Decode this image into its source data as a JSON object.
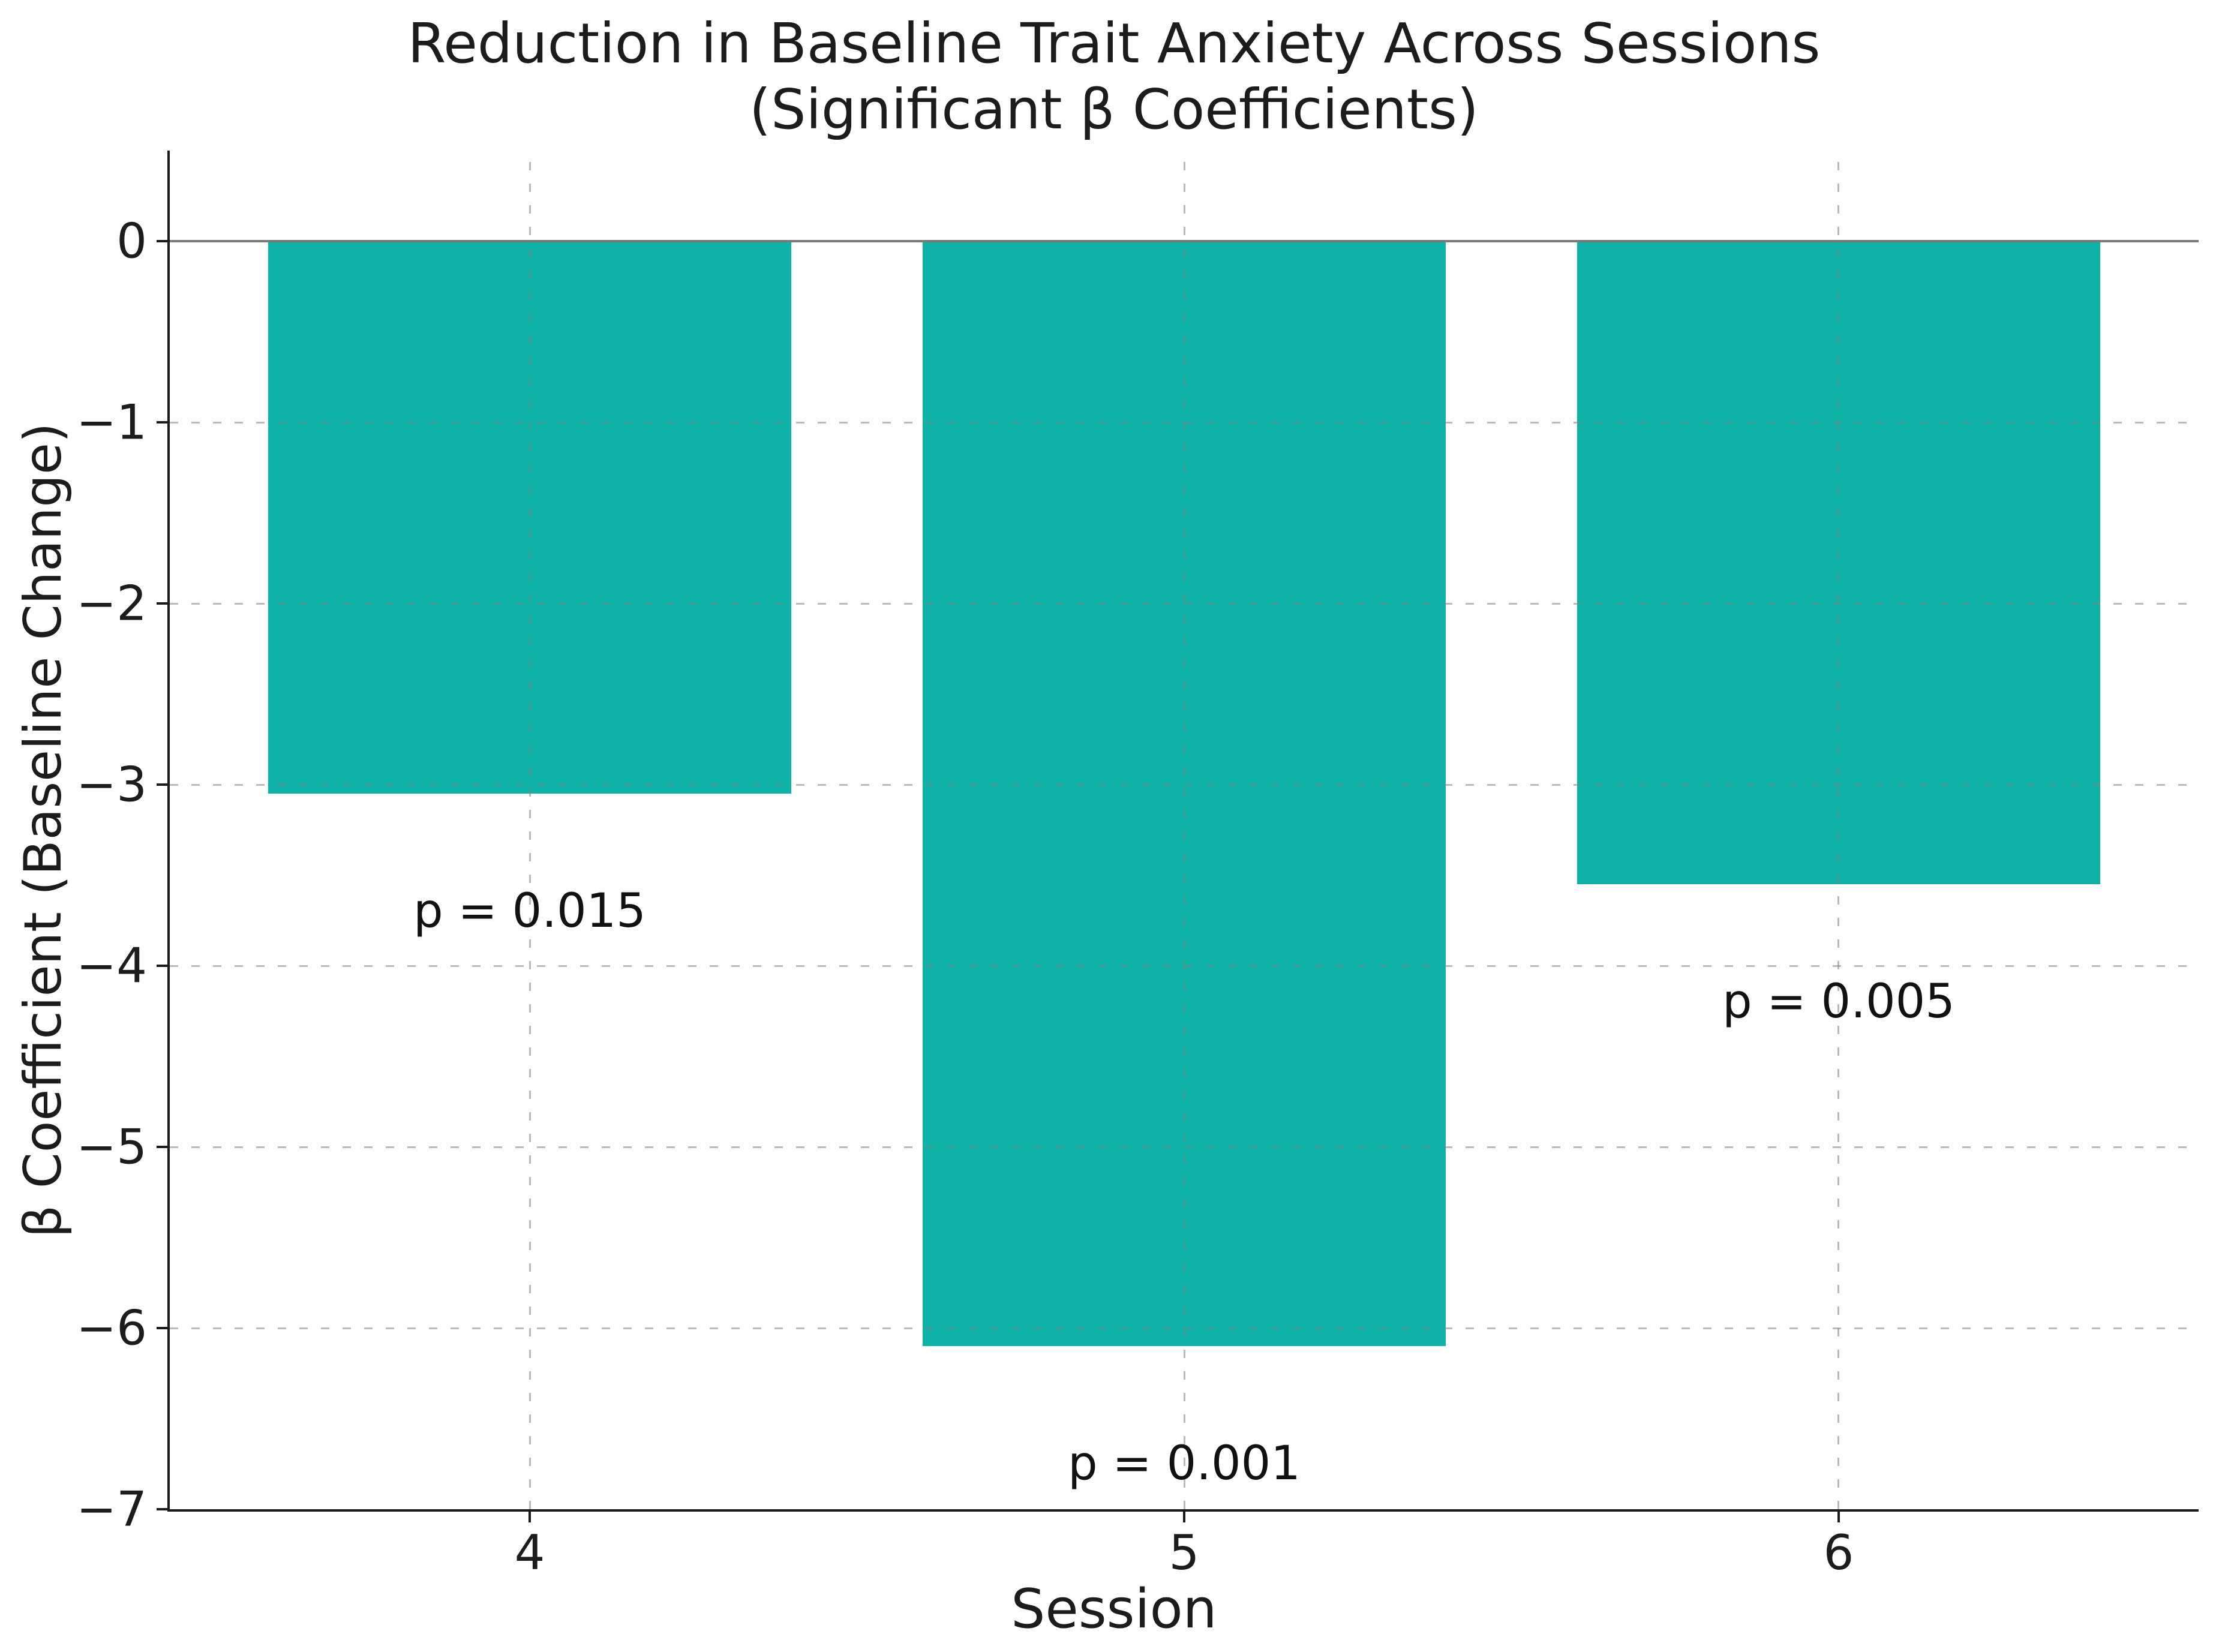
{
  "chart_data": {
    "type": "bar",
    "title": "Reduction in Baseline Trait Anxiety Across Sessions",
    "subtitle": "(Significant β Coefficients)",
    "xlabel": "Session",
    "ylabel": "β Coefficient (Baseline Change)",
    "categories": [
      "4",
      "5",
      "6"
    ],
    "values": [
      -3.05,
      -6.1,
      -3.55
    ],
    "annotations": [
      {
        "session": "4",
        "label": "p = 0.015"
      },
      {
        "session": "5",
        "label": "p = 0.001"
      },
      {
        "session": "6",
        "label": "p = 0.005"
      }
    ],
    "y_ticks": [
      0,
      -1,
      -2,
      -3,
      -4,
      -5,
      -6,
      -7
    ],
    "ylim": [
      -7,
      0.5
    ],
    "xlim": [
      3.45,
      6.55
    ],
    "x_positions": [
      4,
      5,
      6
    ],
    "bar_width": 0.8,
    "annotation_offset": 0.5,
    "grid": true,
    "gridline_style": "dashed",
    "legend": "none",
    "colors": {
      "bar": "#0fb2a7",
      "grid": "rgba(130,130,130,0.55)",
      "zero_line": "#7a7a7a",
      "spine": "#1a1a1a",
      "text": "#1c1c1c"
    }
  }
}
